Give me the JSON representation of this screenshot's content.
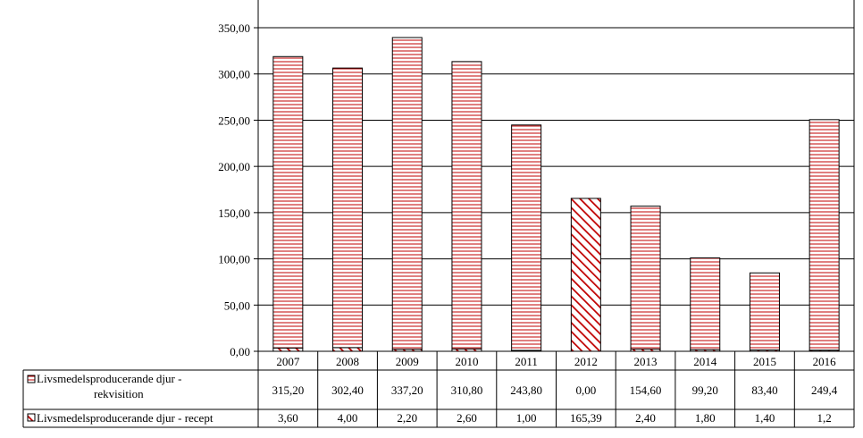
{
  "chart_data": {
    "type": "bar",
    "stacked": true,
    "categories": [
      "2007",
      "2008",
      "2009",
      "2010",
      "2011",
      "2012",
      "2013",
      "2014",
      "2015",
      "2016"
    ],
    "series": [
      {
        "name": "Livsmedelsproducerande djur - rekvisition",
        "values": [
          315.2,
          302.4,
          337.2,
          310.8,
          243.8,
          0.0,
          154.6,
          99.2,
          83.4,
          249.4
        ],
        "labels": [
          "315,20",
          "302,40",
          "337,20",
          "310,80",
          "243,80",
          "0,00",
          "154,60",
          "99,20",
          "83,40",
          "249,4"
        ],
        "pattern": "horizontal-stripes",
        "color": "#c00000"
      },
      {
        "name": "Livsmedelsproducerande djur - recept",
        "values": [
          3.6,
          4.0,
          2.2,
          2.6,
          1.0,
          165.39,
          2.4,
          1.8,
          1.4,
          1.2
        ],
        "labels": [
          "3,60",
          "4,00",
          "2,20",
          "2,60",
          "1,00",
          "165,39",
          "2,40",
          "1,80",
          "1,40",
          "1,2"
        ],
        "pattern": "diagonal-stripes",
        "color": "#c00000"
      }
    ],
    "y_ticks": [
      "0,00",
      "50,00",
      "100,00",
      "150,00",
      "200,00",
      "250,00",
      "300,00",
      "350,00"
    ],
    "y_tick_values": [
      0,
      50,
      100,
      150,
      200,
      250,
      300,
      350
    ],
    "ylim": [
      0,
      380
    ],
    "gridlines": true,
    "legend": "data-table"
  }
}
